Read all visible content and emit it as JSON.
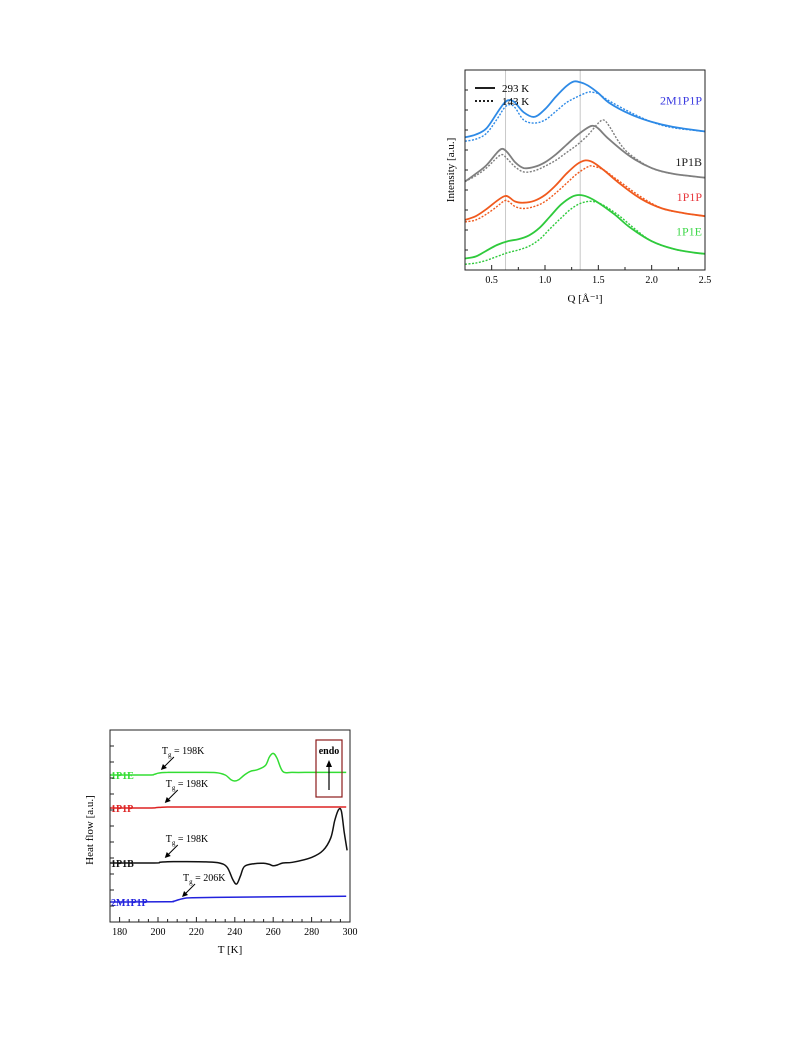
{
  "chart_data": [
    {
      "type": "line",
      "xlabel": "Q [Å⁻¹]",
      "ylabel": "Intensity [a.u.]",
      "xlim": [
        0.25,
        2.5
      ],
      "xticks": [
        "0.5",
        "1.0",
        "1.5",
        "2.0",
        "2.5"
      ],
      "yticks_labeled": false,
      "grid": false,
      "legend": {
        "position": "top-left",
        "items": [
          {
            "label": "293 K",
            "style": "solid"
          },
          {
            "label": "143 K",
            "style": "dotted"
          }
        ]
      },
      "reference_lines_x": [
        0.63,
        1.33
      ],
      "series": [
        {
          "name": "2M1P1P",
          "color": "#2e8ae6",
          "label_color": "#3b3be0",
          "offset": 3.0,
          "solid": {
            "x": [
              0.25,
              0.35,
              0.45,
              0.55,
              0.62,
              0.67,
              0.72,
              0.8,
              0.9,
              1.0,
              1.1,
              1.2,
              1.27,
              1.33,
              1.4,
              1.5,
              1.6,
              1.8,
              2.0,
              2.2,
              2.5
            ],
            "y": [
              0.15,
              0.22,
              0.38,
              0.78,
              1.05,
              1.12,
              1.05,
              0.8,
              0.68,
              0.88,
              1.2,
              1.48,
              1.6,
              1.58,
              1.5,
              1.3,
              1.05,
              0.75,
              0.55,
              0.42,
              0.3
            ]
          },
          "dotted": {
            "x": [
              0.25,
              0.35,
              0.45,
              0.55,
              0.62,
              0.67,
              0.72,
              0.8,
              0.9,
              1.0,
              1.1,
              1.2,
              1.3,
              1.4,
              1.45,
              1.5,
              1.6,
              1.8,
              2.0,
              2.2,
              2.5
            ],
            "y": [
              0.05,
              0.1,
              0.25,
              0.62,
              0.92,
              1.0,
              0.92,
              0.6,
              0.52,
              0.6,
              0.82,
              1.05,
              1.2,
              1.32,
              1.32,
              1.28,
              1.1,
              0.8,
              0.55,
              0.4,
              0.3
            ]
          }
        },
        {
          "name": "1P1B",
          "color": "#7f7f7f",
          "label_color": "#222222",
          "offset": 2.0,
          "solid": {
            "x": [
              0.25,
              0.35,
              0.45,
              0.55,
              0.6,
              0.65,
              0.72,
              0.8,
              0.9,
              1.0,
              1.1,
              1.2,
              1.3,
              1.4,
              1.45,
              1.5,
              1.6,
              1.8,
              2.0,
              2.2,
              2.5
            ],
            "y": [
              0.0,
              0.2,
              0.42,
              0.75,
              0.85,
              0.75,
              0.5,
              0.35,
              0.38,
              0.5,
              0.7,
              0.95,
              1.2,
              1.4,
              1.45,
              1.38,
              1.1,
              0.65,
              0.35,
              0.2,
              0.1
            ]
          },
          "dotted": {
            "x": [
              0.25,
              0.35,
              0.45,
              0.55,
              0.6,
              0.65,
              0.72,
              0.8,
              0.9,
              1.0,
              1.1,
              1.2,
              1.3,
              1.4,
              1.5,
              1.55,
              1.6,
              1.7,
              1.8,
              2.0,
              2.2,
              2.5
            ],
            "y": [
              0.0,
              0.15,
              0.35,
              0.62,
              0.7,
              0.58,
              0.38,
              0.25,
              0.28,
              0.4,
              0.55,
              0.75,
              0.95,
              1.2,
              1.52,
              1.6,
              1.45,
              1.0,
              0.7,
              0.35,
              0.2,
              0.1
            ]
          }
        },
        {
          "name": "1P1P",
          "color": "#f05a1e",
          "label_color": "#e8383d",
          "offset": 1.0,
          "solid": {
            "x": [
              0.25,
              0.35,
              0.45,
              0.55,
              0.62,
              0.66,
              0.72,
              0.8,
              0.9,
              1.0,
              1.1,
              1.2,
              1.3,
              1.38,
              1.45,
              1.55,
              1.7,
              1.9,
              2.1,
              2.3,
              2.5
            ],
            "y": [
              0.0,
              0.1,
              0.28,
              0.5,
              0.62,
              0.6,
              0.48,
              0.45,
              0.5,
              0.65,
              0.9,
              1.2,
              1.45,
              1.55,
              1.5,
              1.3,
              0.95,
              0.55,
              0.3,
              0.18,
              0.1
            ]
          },
          "dotted": {
            "x": [
              0.25,
              0.35,
              0.45,
              0.55,
              0.62,
              0.66,
              0.72,
              0.8,
              0.9,
              1.0,
              1.1,
              1.2,
              1.3,
              1.4,
              1.45,
              1.55,
              1.7,
              1.9,
              2.1,
              2.3,
              2.5
            ],
            "y": [
              -0.05,
              0.0,
              0.15,
              0.35,
              0.5,
              0.48,
              0.35,
              0.3,
              0.35,
              0.48,
              0.7,
              0.95,
              1.2,
              1.38,
              1.4,
              1.3,
              1.0,
              0.6,
              0.3,
              0.18,
              0.1
            ]
          }
        },
        {
          "name": "1P1E",
          "color": "#2fca3c",
          "label_color": "#3fd84a",
          "offset": 0.0,
          "solid": {
            "x": [
              0.25,
              0.35,
              0.45,
              0.55,
              0.65,
              0.75,
              0.85,
              0.95,
              1.05,
              1.15,
              1.25,
              1.32,
              1.4,
              1.5,
              1.65,
              1.8,
              2.0,
              2.2,
              2.4,
              2.5
            ],
            "y": [
              0.0,
              0.05,
              0.2,
              0.35,
              0.45,
              0.5,
              0.6,
              0.8,
              1.1,
              1.4,
              1.6,
              1.65,
              1.6,
              1.45,
              1.15,
              0.8,
              0.45,
              0.25,
              0.15,
              0.12
            ]
          },
          "dotted": {
            "x": [
              0.25,
              0.35,
              0.45,
              0.55,
              0.65,
              0.75,
              0.85,
              0.95,
              1.05,
              1.15,
              1.25,
              1.35,
              1.45,
              1.55,
              1.7,
              1.85,
              2.0,
              2.2,
              2.4,
              2.5
            ],
            "y": [
              -0.15,
              -0.12,
              -0.05,
              0.05,
              0.15,
              0.22,
              0.32,
              0.5,
              0.78,
              1.05,
              1.3,
              1.45,
              1.48,
              1.38,
              1.1,
              0.75,
              0.45,
              0.25,
              0.15,
              0.12
            ]
          }
        }
      ]
    },
    {
      "type": "line",
      "xlabel": "T [K]",
      "ylabel": "Heat flow [a.u.]",
      "xlim": [
        175,
        300
      ],
      "xticks": [
        "180",
        "200",
        "220",
        "240",
        "260",
        "280",
        "300"
      ],
      "yticks_labeled": false,
      "grid": false,
      "inset_label": "endo",
      "series": [
        {
          "name": "1P1E",
          "color": "#33dd33",
          "baseline": 0.0,
          "tg_label": "T",
          "tg_sub": "g",
          "tg_value": " = 198K",
          "tg_x": 201,
          "x": [
            175,
            195,
            198,
            200,
            202,
            205,
            210,
            220,
            230,
            235,
            238,
            240,
            242,
            245,
            248,
            252,
            256,
            258,
            260,
            262,
            265,
            270,
            280,
            290,
            298
          ],
          "y": [
            0,
            0,
            0.05,
            0.15,
            0.2,
            0.22,
            0.22,
            0.22,
            0.2,
            0.0,
            -0.4,
            -0.5,
            -0.4,
            0.0,
            0.3,
            0.45,
            0.8,
            1.5,
            1.8,
            1.4,
            0.3,
            0.22,
            0.22,
            0.22,
            0.22
          ]
        },
        {
          "name": "1P1P",
          "color": "#dd2222",
          "baseline": 0.0,
          "tg_label": "T",
          "tg_sub": "g",
          "tg_value": " = 198K",
          "tg_x": 203,
          "x": [
            175,
            196,
            199,
            202,
            205,
            210,
            240,
            270,
            298
          ],
          "y": [
            0,
            0,
            0.03,
            0.07,
            0.08,
            0.08,
            0.08,
            0.08,
            0.08
          ]
        },
        {
          "name": "1P1B",
          "color": "#111111",
          "baseline": 0.0,
          "tg_label": "T",
          "tg_sub": "g",
          "tg_value": " = 198K",
          "tg_x": 203,
          "x": [
            175,
            198,
            201,
            204,
            208,
            215,
            225,
            232,
            236,
            239,
            241,
            243,
            245,
            250,
            255,
            258,
            260,
            262,
            265,
            270,
            280,
            286,
            290,
            292,
            294,
            295.5,
            297,
            298.5
          ],
          "y": [
            0,
            0,
            0.05,
            0.08,
            0.1,
            0.1,
            0.08,
            0.0,
            -0.3,
            -1.2,
            -1.5,
            -0.9,
            -0.25,
            -0.05,
            -0.02,
            -0.1,
            -0.2,
            -0.15,
            0.0,
            0.05,
            0.4,
            0.9,
            1.8,
            3.0,
            3.8,
            3.7,
            2.2,
            0.9
          ]
        },
        {
          "name": "2M1P1P",
          "color": "#2222dd",
          "baseline": 0.0,
          "tg_label": "T",
          "tg_sub": "g",
          "tg_value": " = 206K",
          "tg_x": 212,
          "x": [
            175,
            205,
            208,
            211,
            214,
            218,
            230,
            250,
            270,
            298
          ],
          "y": [
            0,
            0.02,
            0.06,
            0.2,
            0.32,
            0.35,
            0.38,
            0.42,
            0.45,
            0.48
          ]
        }
      ]
    }
  ]
}
